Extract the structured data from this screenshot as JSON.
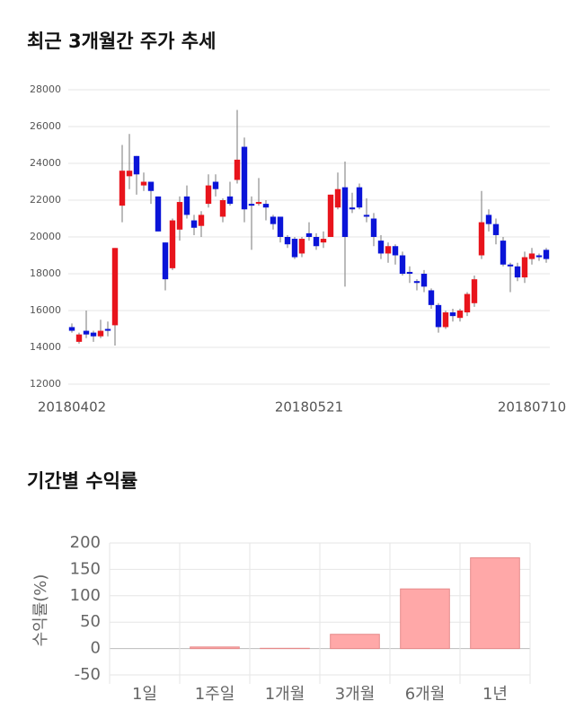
{
  "chart_data": [
    {
      "type": "candlestick",
      "title": "최근 3개월간 주가 추세",
      "categories": [
        "20180402",
        null,
        null,
        null,
        null,
        null,
        null,
        null,
        null,
        null,
        null,
        null,
        null,
        null,
        null,
        null,
        null,
        null,
        null,
        null,
        null,
        null,
        null,
        null,
        null,
        null,
        null,
        null,
        null,
        null,
        null,
        null,
        null,
        "20180521",
        null,
        null,
        null,
        null,
        null,
        null,
        null,
        null,
        null,
        null,
        null,
        null,
        null,
        null,
        null,
        null,
        null,
        null,
        null,
        null,
        null,
        null,
        null,
        null,
        null,
        null,
        null,
        null,
        null,
        null,
        "20180710",
        null,
        null
      ],
      "open": [
        15100,
        14300,
        14900,
        14800,
        14600,
        15000,
        15200,
        21700,
        23300,
        24400,
        22800,
        23000,
        22200,
        19700,
        18300,
        20400,
        22200,
        20900,
        20600,
        21800,
        23000,
        21100,
        22200,
        23100,
        24900,
        21800,
        21800,
        21800,
        21100,
        21100,
        20000,
        19900,
        19100,
        20200,
        20000,
        19700,
        20000,
        21600,
        22700,
        21600,
        22700,
        21200,
        21000,
        19800,
        19100,
        19500,
        19000,
        18100,
        17600,
        18000,
        17100,
        16300,
        15100,
        15900,
        15600,
        15900,
        16400,
        19000,
        21200,
        20700,
        19800,
        18500,
        18400,
        17800,
        18800,
        19000,
        19300
      ],
      "high": [
        15300,
        14800,
        16000,
        14900,
        15500,
        15400,
        19400,
        25000,
        25600,
        24400,
        23500,
        23000,
        22200,
        19700,
        21000,
        22200,
        22800,
        21200,
        21400,
        23400,
        23400,
        22100,
        23000,
        26900,
        25400,
        22200,
        23200,
        22000,
        21200,
        21100,
        20100,
        20000,
        20000,
        20800,
        20200,
        20300,
        22300,
        23500,
        24100,
        22400,
        22900,
        22100,
        21300,
        20100,
        19700,
        19600,
        19200,
        18400,
        17700,
        18200,
        17200,
        16400,
        16000,
        16100,
        16100,
        17000,
        17900,
        22500,
        21500,
        21000,
        20000,
        18600,
        18600,
        19200,
        19400,
        19100,
        19400
      ],
      "low": [
        14800,
        14200,
        14500,
        14300,
        14500,
        14600,
        14100,
        20800,
        22600,
        22300,
        22500,
        21800,
        20300,
        17100,
        18200,
        19800,
        21000,
        20100,
        20000,
        21600,
        22200,
        20800,
        21700,
        22900,
        20800,
        19300,
        21700,
        20900,
        20400,
        19700,
        19400,
        18800,
        18900,
        19800,
        19300,
        19400,
        20000,
        21500,
        17300,
        21300,
        21500,
        20800,
        19500,
        18800,
        18600,
        18500,
        17900,
        17500,
        17100,
        17000,
        16100,
        14800,
        15000,
        15400,
        15400,
        15700,
        16200,
        18800,
        20300,
        19600,
        18400,
        17000,
        17600,
        17500,
        18500,
        18700,
        18600
      ],
      "close": [
        14900,
        14700,
        14700,
        14600,
        14900,
        14900,
        19400,
        23600,
        23600,
        23400,
        23000,
        22500,
        20300,
        17700,
        20900,
        21900,
        21200,
        20500,
        21200,
        22800,
        22600,
        22000,
        21800,
        24200,
        21500,
        21700,
        21900,
        21600,
        20700,
        20000,
        19600,
        18900,
        19900,
        20000,
        19500,
        19900,
        22300,
        22600,
        20000,
        21500,
        21600,
        21100,
        20000,
        19100,
        19500,
        19000,
        18000,
        18000,
        17500,
        17300,
        16300,
        15100,
        15900,
        15700,
        16000,
        16900,
        17700,
        20800,
        20700,
        20100,
        18500,
        18400,
        17800,
        18900,
        19100,
        18900,
        18800
      ],
      "up_color": "#e8141c",
      "down_color": "#0a14d8",
      "ylim": [
        12000,
        28000
      ],
      "yticks": [
        12000,
        14000,
        16000,
        18000,
        20000,
        22000,
        24000,
        26000,
        28000
      ],
      "grid": true
    },
    {
      "type": "bar",
      "title": "기간별 수익률",
      "y_label": "수익률(%)",
      "categories": [
        "1일",
        "1주일",
        "1개월",
        "3개월",
        "6개월",
        "1년"
      ],
      "values": [
        0,
        3,
        0.5,
        27,
        113,
        172
      ],
      "color": "#ffa8a8",
      "ylim": [
        -67,
        200
      ],
      "yticks": [
        -50,
        0,
        50,
        100,
        150,
        200
      ],
      "grid": true
    }
  ]
}
